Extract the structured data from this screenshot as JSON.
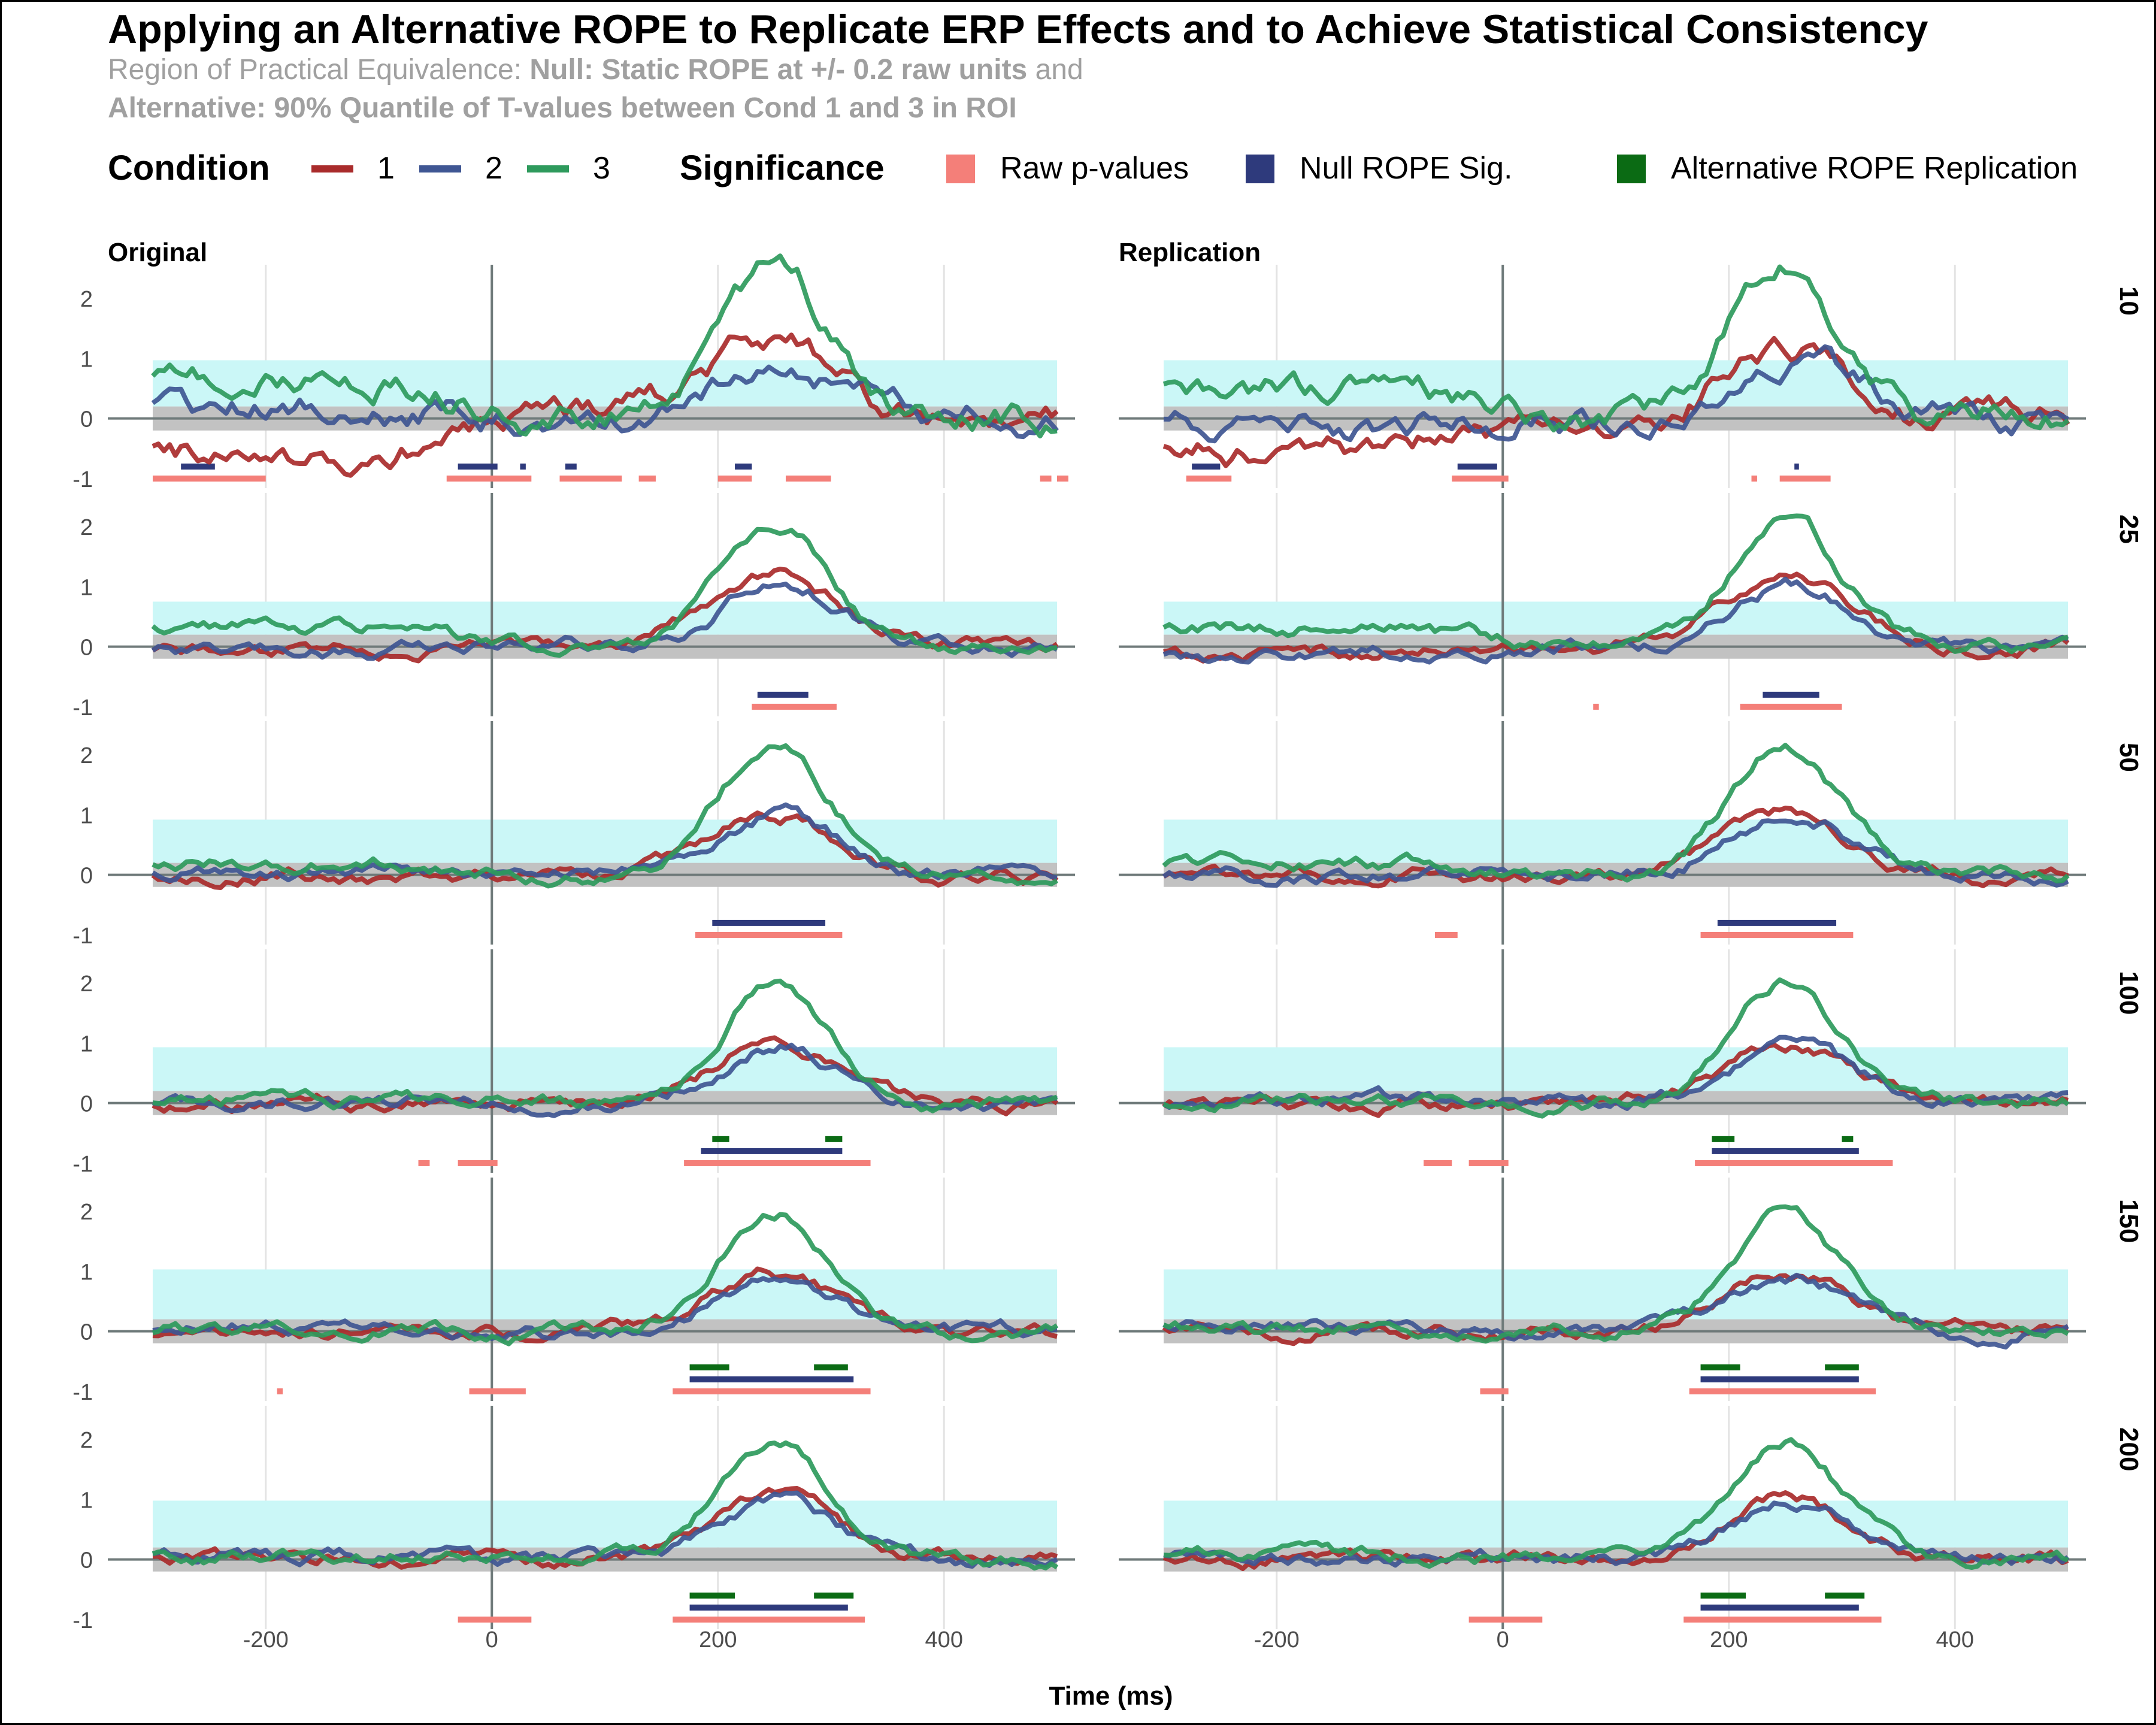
{
  "chart_data": {
    "type": "line",
    "title": "Applying an Alternative ROPE to Replicate ERP Effects and to Achieve Statistical Consistency",
    "subtitle_line1": {
      "prefix": "Region of Practical Equivalence: ",
      "bold": "Null: Static ROPE at +/- 0.2 raw units",
      "suffix": " and"
    },
    "subtitle_line2": {
      "bold": "Alternative: 90% Quantile of T-values between Cond 1 and 3 in ROI"
    },
    "xlabel": "Time (ms)",
    "ylabel": "",
    "xlim": [
      -300,
      500
    ],
    "ylim": [
      -1.2,
      2.6
    ],
    "x_ticks": [
      -200,
      0,
      200,
      400
    ],
    "y_ticks": [
      -1,
      0,
      1,
      2
    ],
    "grid": true,
    "legend": {
      "position": "top",
      "condition": {
        "title": "Condition",
        "entries": [
          {
            "label": "1",
            "color": "#a92b2b"
          },
          {
            "label": "2",
            "color": "#3f5693"
          },
          {
            "label": "3",
            "color": "#2e9a5c"
          }
        ]
      },
      "significance": {
        "title": "Significance",
        "entries": [
          {
            "label": "Raw p-values",
            "color": "#f47f79"
          },
          {
            "label": "Null ROPE Sig.",
            "color": "#2e3a7c"
          },
          {
            "label": "Alternative ROPE Replication",
            "color": "#0b6b14"
          }
        ]
      }
    },
    "columns": [
      "Original",
      "Replication"
    ],
    "rows": [
      "10",
      "25",
      "50",
      "100",
      "150",
      "200"
    ],
    "null_rope": [
      -0.2,
      0.2
    ],
    "alt_rope_upper": [
      0.97,
      0.75,
      0.92,
      0.93,
      1.03,
      0.98
    ],
    "sig_rows_y": {
      "raw": -1.0,
      "null": -0.8,
      "alt": -0.6
    },
    "bands": {
      "Original": [
        {
          "raw": [
            [
              -300,
              -200
            ],
            [
              -40,
              35
            ],
            [
              60,
              115
            ],
            [
              130,
              145
            ],
            [
              200,
              230
            ],
            [
              260,
              300
            ],
            [
              485,
              495
            ],
            [
              500,
              510
            ]
          ],
          "null": [
            [
              -275,
              -245
            ],
            [
              -30,
              5
            ],
            [
              25,
              30
            ],
            [
              65,
              75
            ],
            [
              215,
              230
            ]
          ],
          "alt": []
        },
        {
          "raw": [
            [
              230,
              305
            ]
          ],
          "null": [
            [
              235,
              280
            ]
          ],
          "alt": []
        },
        {
          "raw": [
            [
              180,
              310
            ]
          ],
          "null": [
            [
              195,
              295
            ]
          ],
          "alt": []
        },
        {
          "raw": [
            [
              -65,
              -55
            ],
            [
              -30,
              5
            ],
            [
              170,
              335
            ]
          ],
          "null": [
            [
              185,
              310
            ]
          ],
          "alt": [
            [
              195,
              210
            ],
            [
              295,
              310
            ]
          ]
        },
        {
          "raw": [
            [
              -190,
              -185
            ],
            [
              -20,
              30
            ],
            [
              160,
              335
            ]
          ],
          "null": [
            [
              175,
              320
            ]
          ],
          "alt": [
            [
              175,
              210
            ],
            [
              285,
              315
            ]
          ]
        },
        {
          "raw": [
            [
              -30,
              35
            ],
            [
              160,
              330
            ]
          ],
          "null": [
            [
              175,
              315
            ]
          ],
          "alt": [
            [
              175,
              215
            ],
            [
              285,
              320
            ]
          ]
        }
      ],
      "Replication": [
        {
          "raw": [
            [
              -280,
              -240
            ],
            [
              -45,
              5
            ],
            [
              220,
              225
            ],
            [
              245,
              290
            ]
          ],
          "null": [
            [
              -275,
              -250
            ],
            [
              -40,
              -5
            ],
            [
              258,
              262
            ]
          ],
          "alt": []
        },
        {
          "raw": [
            [
              80,
              85
            ],
            [
              210,
              300
            ]
          ],
          "null": [
            [
              230,
              280
            ]
          ],
          "alt": []
        },
        {
          "raw": [
            [
              -60,
              -40
            ],
            [
              175,
              310
            ]
          ],
          "null": [
            [
              190,
              295
            ]
          ],
          "alt": []
        },
        {
          "raw": [
            [
              -70,
              -45
            ],
            [
              -30,
              5
            ],
            [
              170,
              345
            ]
          ],
          "null": [
            [
              185,
              315
            ]
          ],
          "alt": [
            [
              185,
              205
            ],
            [
              300,
              310
            ]
          ]
        },
        {
          "raw": [
            [
              -20,
              5
            ],
            [
              165,
              330
            ]
          ],
          "null": [
            [
              175,
              315
            ]
          ],
          "alt": [
            [
              175,
              210
            ],
            [
              285,
              315
            ]
          ]
        },
        {
          "raw": [
            [
              -30,
              35
            ],
            [
              160,
              335
            ]
          ],
          "null": [
            [
              175,
              315
            ]
          ],
          "alt": [
            [
              175,
              215
            ],
            [
              285,
              320
            ]
          ]
        }
      ]
    },
    "peaks": {
      "Original": [
        {
          "c1": 1.4,
          "c2": 1.0,
          "c3": 2.4,
          "pre1": -0.65,
          "pre2": 0.15,
          "pre3": 0.65
        },
        {
          "c1": 1.2,
          "c2": 1.05,
          "c3": 2.1,
          "pre1": -0.1,
          "pre2": -0.1,
          "pre3": 0.35
        },
        {
          "c1": 1.0,
          "c2": 1.0,
          "c3": 2.15,
          "pre1": 0.0,
          "pre2": 0.05,
          "pre3": 0.2
        },
        {
          "c1": 1.0,
          "c2": 0.95,
          "c3": 2.0,
          "pre1": 0.0,
          "pre2": 0.05,
          "pre3": 0.05
        },
        {
          "c1": 0.95,
          "c2": 0.9,
          "c3": 2.0,
          "pre1": 0.0,
          "pre2": 0.1,
          "pre3": 0.05
        },
        {
          "c1": 1.0,
          "c2": 0.95,
          "c3": 2.0,
          "pre1": 0.0,
          "pre2": 0.05,
          "pre3": 0.05
        }
      ],
      "Replication": [
        {
          "c1": 1.2,
          "c2": 1.1,
          "c3": 2.5,
          "pre1": -0.6,
          "pre2": -0.1,
          "pre3": 0.55
        },
        {
          "c1": 1.2,
          "c2": 1.0,
          "c3": 2.1,
          "pre1": -0.1,
          "pre2": -0.15,
          "pre3": 0.35
        },
        {
          "c1": 1.0,
          "c2": 1.0,
          "c3": 2.15,
          "pre1": 0.0,
          "pre2": 0.0,
          "pre3": 0.2
        },
        {
          "c1": 0.95,
          "c2": 0.9,
          "c3": 2.0,
          "pre1": 0.0,
          "pre2": 0.05,
          "pre3": 0.05
        },
        {
          "c1": 0.95,
          "c2": 0.9,
          "c3": 2.0,
          "pre1": 0.0,
          "pre2": 0.05,
          "pre3": 0.05
        },
        {
          "c1": 1.0,
          "c2": 0.95,
          "c3": 2.0,
          "pre1": 0.0,
          "pre2": 0.05,
          "pre3": 0.05
        }
      ]
    },
    "colors": {
      "alt_rope_fill": "#cbf7f7",
      "null_rope_fill": "#c2c2c2",
      "grid": "#e3e3e3",
      "zero_line": "#6f7a7a",
      "subtitle": "#a0a0a0"
    }
  }
}
